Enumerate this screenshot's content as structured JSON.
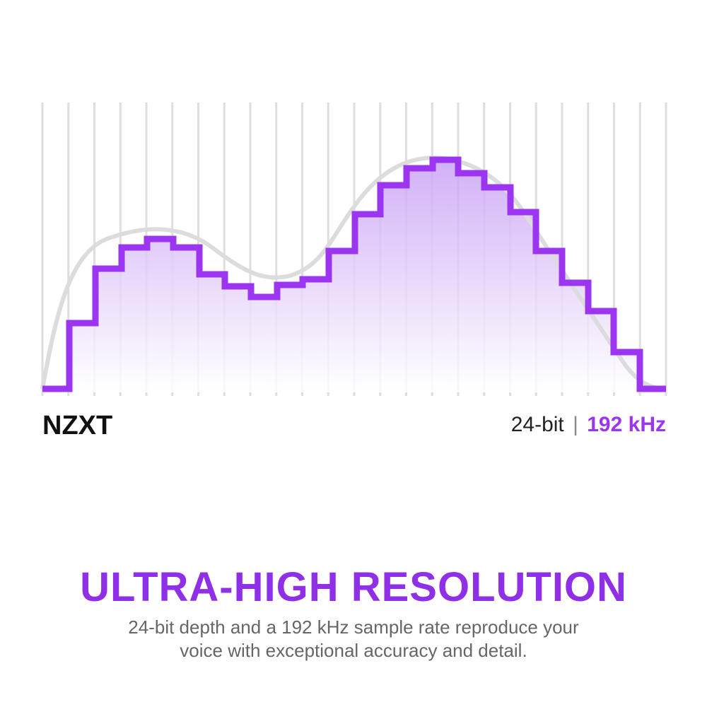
{
  "brand": "NZXT",
  "spec": {
    "bit_depth": "24-bit",
    "separator": "|",
    "sample_rate": "192 kHz"
  },
  "headline": "ULTRA-HIGH RESOLUTION",
  "description": [
    "24-bit depth and a 192 kHz sample rate reproduce your",
    "voice with exceptional accuracy and detail."
  ]
}
